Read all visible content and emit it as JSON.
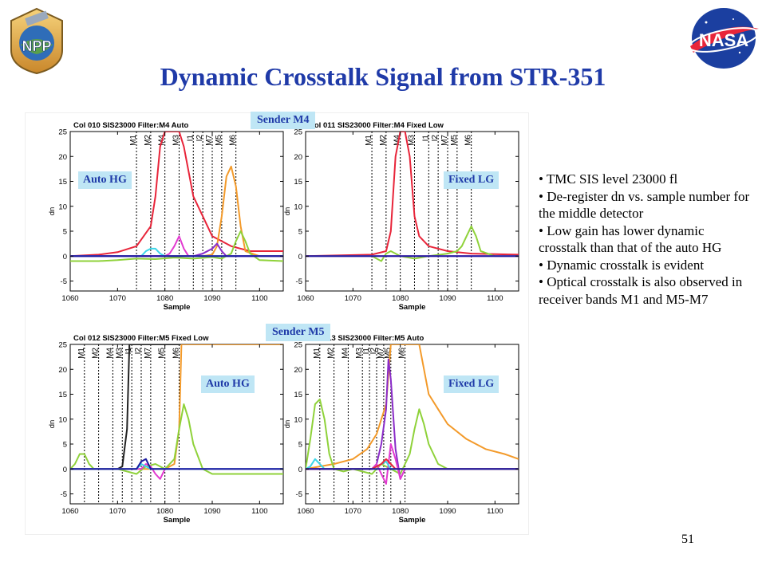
{
  "title": "Dynamic Crosstalk Signal from STR-351",
  "page_number": "51",
  "logos": {
    "npp_text": "NPP",
    "nasa_text": "NASA"
  },
  "labels": {
    "sender_m4": "Sender M4",
    "sender_m5": "Sender M5",
    "auto_hg_1": "Auto HG",
    "fixed_lg_1": "Fixed LG",
    "auto_hg_2": "Auto HG",
    "fixed_lg_2": "Fixed LG"
  },
  "bullets": [
    "TMC SIS level 23000 fl",
    "De-register  dn vs. sample number for the middle detector",
    "Low gain has lower dynamic crosstalk than that of the auto HG",
    "Dynamic crosstalk is evident",
    "Optical crosstalk is also observed in receiver bands M1 and M5-M7"
  ],
  "chart_data": [
    {
      "type": "line",
      "title": "Col 010  SIS23000  Filter:M4  Auto",
      "xlabel": "Sample",
      "ylabel": "dn",
      "xlim": [
        1060,
        1105
      ],
      "ylim": [
        -7,
        25
      ],
      "xticks": [
        1060,
        1070,
        1080,
        1090,
        1100
      ],
      "yticks": [
        -5,
        0,
        5,
        10,
        15,
        20,
        25
      ],
      "band_markers": [
        {
          "name": "M1",
          "x": 1074
        },
        {
          "name": "M2",
          "x": 1077
        },
        {
          "name": "M4",
          "x": 1080
        },
        {
          "name": "M3",
          "x": 1083
        },
        {
          "name": "I1",
          "x": 1086
        },
        {
          "name": "I2",
          "x": 1088
        },
        {
          "name": "M7",
          "x": 1090
        },
        {
          "name": "M5",
          "x": 1092
        },
        {
          "name": "M6",
          "x": 1095
        }
      ],
      "series": [
        {
          "color": "#e8253a",
          "x": [
            1060,
            1066,
            1070,
            1074,
            1077,
            1078,
            1079,
            1080,
            1081,
            1082,
            1083,
            1084,
            1086,
            1090,
            1094,
            1098,
            1102,
            1105
          ],
          "y": [
            0,
            0.3,
            0.8,
            2,
            6,
            12,
            22,
            25,
            25,
            25,
            25,
            22,
            12,
            4,
            2,
            1,
            1,
            1
          ]
        },
        {
          "color": "#f39a2a",
          "x": [
            1060,
            1088,
            1090,
            1091,
            1092,
            1093,
            1094,
            1095,
            1096,
            1097,
            1100,
            1105
          ],
          "y": [
            0,
            0,
            0.3,
            2,
            8,
            16,
            18,
            14,
            6,
            1,
            0,
            0
          ]
        },
        {
          "color": "#8fd23a",
          "x": [
            1060,
            1066,
            1070,
            1074,
            1078,
            1082,
            1086,
            1090,
            1092,
            1094,
            1095,
            1096,
            1097,
            1098,
            1100,
            1105
          ],
          "y": [
            -1,
            -1,
            -0.8,
            -0.5,
            -0.6,
            -0.3,
            -0.5,
            -0.2,
            -0.5,
            0.5,
            3,
            5,
            3,
            0.5,
            -0.8,
            -1
          ]
        },
        {
          "color": "#e23ad0",
          "x": [
            1060,
            1080,
            1081,
            1082,
            1083,
            1084,
            1085,
            1086,
            1105
          ],
          "y": [
            0,
            0,
            0.5,
            2,
            4,
            1.5,
            0,
            0,
            0
          ]
        },
        {
          "color": "#3cd6e8",
          "x": [
            1060,
            1075,
            1076,
            1077,
            1078,
            1079,
            1080,
            1105
          ],
          "y": [
            0,
            0,
            1,
            1.5,
            1.5,
            0.5,
            0,
            0
          ]
        },
        {
          "color": "#8a2cc8",
          "x": [
            1060,
            1086,
            1088,
            1090,
            1091,
            1092,
            1093,
            1105
          ],
          "y": [
            0,
            0,
            0.5,
            1.5,
            2.5,
            1,
            0,
            0
          ]
        },
        {
          "color": "#1a1aa0",
          "x": [
            1060,
            1105
          ],
          "y": [
            0,
            0
          ]
        }
      ]
    },
    {
      "type": "line",
      "title": "Col 011  SIS23000  Filter:M4   Fixed Low",
      "xlabel": "Sample",
      "ylabel": "dn",
      "xlim": [
        1060,
        1105
      ],
      "ylim": [
        -7,
        25
      ],
      "xticks": [
        1060,
        1070,
        1080,
        1090,
        1100
      ],
      "yticks": [
        -5,
        0,
        5,
        10,
        15,
        20,
        25
      ],
      "band_markers": [
        {
          "name": "M1",
          "x": 1074
        },
        {
          "name": "M2",
          "x": 1077
        },
        {
          "name": "M4",
          "x": 1080
        },
        {
          "name": "M3",
          "x": 1083
        },
        {
          "name": "I1",
          "x": 1086
        },
        {
          "name": "I2",
          "x": 1088
        },
        {
          "name": "M7",
          "x": 1090
        },
        {
          "name": "M5",
          "x": 1092
        },
        {
          "name": "M6",
          "x": 1095
        }
      ],
      "series": [
        {
          "color": "#e8253a",
          "x": [
            1060,
            1074,
            1077,
            1078,
            1079,
            1080,
            1081,
            1082,
            1083,
            1084,
            1086,
            1090,
            1095,
            1105
          ],
          "y": [
            0,
            0.3,
            1,
            5,
            20,
            25,
            25,
            20,
            8,
            4,
            2,
            1,
            0.5,
            0.3
          ]
        },
        {
          "color": "#8fd23a",
          "x": [
            1060,
            1074,
            1076,
            1077,
            1078,
            1080,
            1083,
            1086,
            1090,
            1092,
            1093,
            1094,
            1095,
            1096,
            1097,
            1100,
            1105
          ],
          "y": [
            0,
            0,
            -1,
            0.5,
            1,
            0,
            -0.5,
            0,
            0.5,
            1,
            2,
            4,
            6,
            4,
            1,
            0,
            0
          ]
        },
        {
          "color": "#e23ad0",
          "x": [
            1060,
            1105
          ],
          "y": [
            0,
            0
          ]
        },
        {
          "color": "#1a1aa0",
          "x": [
            1060,
            1105
          ],
          "y": [
            0,
            0
          ]
        }
      ]
    },
    {
      "type": "line",
      "title": "Col 012  SIS23000  Filter:M5   Fixed Low",
      "xlabel": "Sample",
      "ylabel": "dn",
      "xlim": [
        1060,
        1105
      ],
      "ylim": [
        -7,
        25
      ],
      "xticks": [
        1060,
        1070,
        1080,
        1090,
        1100
      ],
      "yticks": [
        -5,
        0,
        5,
        10,
        15,
        20,
        25
      ],
      "band_markers": [
        {
          "name": "M1",
          "x": 1063
        },
        {
          "name": "M2",
          "x": 1066
        },
        {
          "name": "M4",
          "x": 1069
        },
        {
          "name": "M3",
          "x": 1071
        },
        {
          "name": "I1",
          "x": 1073
        },
        {
          "name": "I2",
          "x": 1075
        },
        {
          "name": "M7",
          "x": 1077
        },
        {
          "name": "M5",
          "x": 1080
        },
        {
          "name": "M6",
          "x": 1083
        }
      ],
      "series": [
        {
          "color": "#222222",
          "x": [
            1060,
            1070,
            1071,
            1072,
            1072.5,
            1073,
            1105
          ],
          "y": [
            0,
            0,
            0.5,
            8,
            25,
            25,
            25
          ]
        },
        {
          "color": "#f39a2a",
          "x": [
            1060,
            1080,
            1082,
            1083,
            1083.5,
            1084,
            1105
          ],
          "y": [
            0,
            0,
            1,
            8,
            25,
            25,
            25
          ]
        },
        {
          "color": "#8fd23a",
          "x": [
            1060,
            1061,
            1062,
            1063,
            1064,
            1065,
            1070,
            1074,
            1076,
            1078,
            1080,
            1082,
            1083,
            1084,
            1085,
            1086,
            1088,
            1090,
            1105
          ],
          "y": [
            0,
            1,
            3,
            3,
            1,
            0,
            0,
            -1,
            0.5,
            1,
            0,
            2,
            8,
            13,
            10,
            5,
            0,
            -1,
            -1
          ]
        },
        {
          "color": "#e23ad0",
          "x": [
            1060,
            1075,
            1076,
            1077,
            1078,
            1079,
            1080,
            1105
          ],
          "y": [
            0,
            0,
            1,
            0.5,
            -1,
            -2,
            0,
            0
          ]
        },
        {
          "color": "#3cd6e8",
          "x": [
            1060,
            1074,
            1075,
            1076,
            1077,
            1105
          ],
          "y": [
            0,
            0,
            1,
            0.5,
            0,
            0
          ]
        },
        {
          "color": "#1a1aa0",
          "x": [
            1060,
            1074,
            1075,
            1076,
            1077,
            1105
          ],
          "y": [
            0,
            0,
            1.5,
            2,
            0,
            0
          ]
        }
      ]
    },
    {
      "type": "line",
      "title": "Col 013  SIS23000  Filter:M5  Auto",
      "xlabel": "Sample",
      "ylabel": "dn",
      "xlim": [
        1060,
        1105
      ],
      "ylim": [
        -7,
        25
      ],
      "xticks": [
        1060,
        1070,
        1080,
        1090,
        1100
      ],
      "yticks": [
        -5,
        0,
        5,
        10,
        15,
        20,
        25
      ],
      "band_markers": [
        {
          "name": "M1",
          "x": 1063
        },
        {
          "name": "M2",
          "x": 1066
        },
        {
          "name": "M4",
          "x": 1069
        },
        {
          "name": "M3",
          "x": 1072
        },
        {
          "name": "I1",
          "x": 1073.5
        },
        {
          "name": "I2",
          "x": 1075
        },
        {
          "name": "M7",
          "x": 1076.5
        },
        {
          "name": "M5",
          "x": 1078
        },
        {
          "name": "M6",
          "x": 1081
        }
      ],
      "series": [
        {
          "color": "#f39a2a",
          "x": [
            1060,
            1066,
            1070,
            1073,
            1075,
            1077,
            1078,
            1079,
            1080,
            1082,
            1084,
            1086,
            1088,
            1090,
            1094,
            1098,
            1102,
            1105
          ],
          "y": [
            0,
            1,
            2,
            4,
            7,
            13,
            25,
            25,
            25,
            25,
            25,
            15,
            12,
            9,
            6,
            4,
            3,
            2
          ]
        },
        {
          "color": "#8fd23a",
          "x": [
            1060,
            1061,
            1062,
            1063,
            1064,
            1065,
            1066,
            1068,
            1070,
            1074,
            1076,
            1078,
            1080,
            1082,
            1083,
            1084,
            1085,
            1086,
            1088,
            1090,
            1105
          ],
          "y": [
            0,
            6,
            13,
            14,
            10,
            3,
            0,
            -0.5,
            0,
            -1,
            1,
            0,
            -1,
            3,
            8,
            12,
            9,
            5,
            1,
            0,
            0
          ]
        },
        {
          "color": "#8a2cc8",
          "x": [
            1060,
            1074,
            1075,
            1076,
            1077,
            1077.5,
            1078,
            1079,
            1080,
            1081,
            1105
          ],
          "y": [
            0,
            0,
            1,
            5,
            12,
            22,
            18,
            4,
            -2,
            0,
            0
          ]
        },
        {
          "color": "#e23ad0",
          "x": [
            1060,
            1074,
            1075,
            1076,
            1077,
            1078,
            1079,
            1080,
            1081,
            1105
          ],
          "y": [
            0,
            0,
            1,
            -1,
            -3,
            5,
            2,
            -2,
            0,
            0
          ]
        },
        {
          "color": "#3cd6e8",
          "x": [
            1060,
            1061,
            1062,
            1063,
            1064,
            1070,
            1074,
            1076,
            1077,
            1078,
            1105
          ],
          "y": [
            0,
            0.5,
            2,
            1,
            0,
            0,
            0,
            1,
            1.5,
            0,
            0
          ]
        },
        {
          "color": "#e8253a",
          "x": [
            1060,
            1074,
            1076,
            1077,
            1078,
            1079,
            1105
          ],
          "y": [
            0,
            0,
            1,
            2,
            1,
            0,
            0
          ]
        },
        {
          "color": "#1a1aa0",
          "x": [
            1060,
            1105
          ],
          "y": [
            0,
            0
          ]
        }
      ]
    }
  ]
}
